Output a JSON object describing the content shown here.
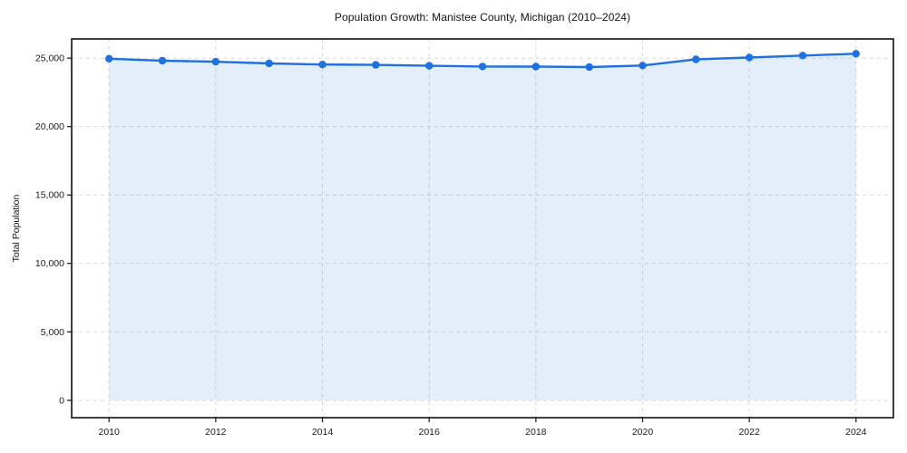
{
  "chart_data": {
    "type": "line",
    "title": "Population Growth: Manistee County, Michigan (2010–2024)",
    "xlabel": "",
    "ylabel": "Total Population",
    "x": [
      2010,
      2011,
      2012,
      2013,
      2014,
      2015,
      2016,
      2017,
      2018,
      2019,
      2020,
      2021,
      2022,
      2023,
      2024
    ],
    "series": [
      {
        "name": "Total Population",
        "values": [
          24960,
          24810,
          24740,
          24610,
          24530,
          24510,
          24440,
          24390,
          24380,
          24350,
          24460,
          24910,
          25040,
          25190,
          25320
        ]
      }
    ],
    "xticks": [
      2010,
      2012,
      2014,
      2016,
      2018,
      2020,
      2022,
      2024
    ],
    "xtick_labels": [
      "2010",
      "2012",
      "2014",
      "2016",
      "2018",
      "2020",
      "2022",
      "2024"
    ],
    "yticks": [
      0,
      5000,
      10000,
      15000,
      20000,
      25000
    ],
    "ytick_labels": [
      "0",
      "5,000",
      "10,000",
      "15,000",
      "20,000",
      "25,000"
    ],
    "xlim": [
      2009.3,
      2024.7
    ],
    "ylim": [
      -1270,
      26400
    ],
    "grid": true,
    "grid_style": "dashed",
    "legend": "none",
    "fill_to_zero": true,
    "colors": {
      "line": "#1f70e0",
      "marker": "#1f70e0",
      "area_fill": "#1f70e0",
      "area_opacity": 0.12,
      "grid": "#cccccc",
      "spine": "#111111",
      "text": "#1a1a1a"
    }
  }
}
